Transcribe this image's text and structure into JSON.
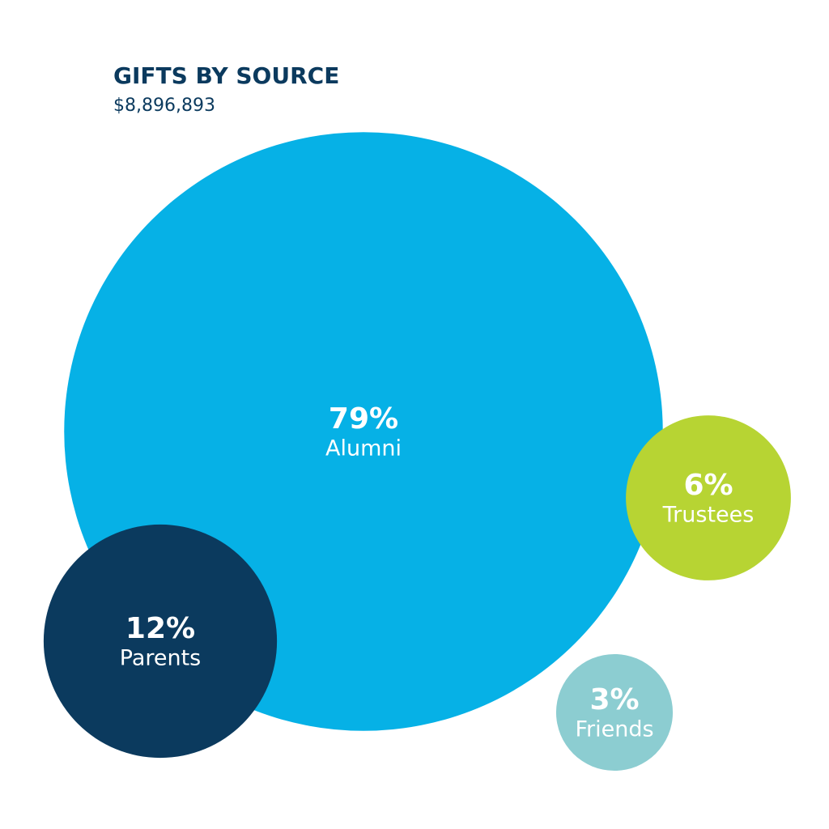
{
  "chart_data": {
    "type": "bubble",
    "title": "GIFTS BY SOURCE",
    "subtitle": "$8,896,893",
    "categories": [
      "Alumni",
      "Parents",
      "Trustees",
      "Friends"
    ],
    "values": [
      79,
      12,
      6,
      3
    ],
    "value_labels": [
      "79%",
      "12%",
      "6%",
      "3%"
    ],
    "colors": [
      "#06b1e6",
      "#0b3a5e",
      "#b7d433",
      "#8ccdd1"
    ]
  }
}
